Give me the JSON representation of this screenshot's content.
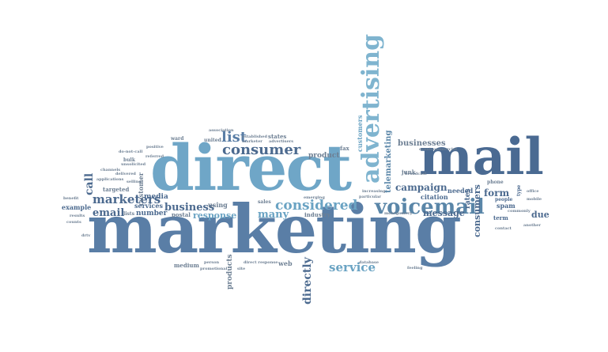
{
  "words": {
    "direct": "direct",
    "marketing": "marketing",
    "mail": "mail",
    "advertising": "advertising",
    "voicemail": "voicemail",
    "consumer": "consumer",
    "list": "list",
    "considered": "considered",
    "business": "business",
    "marketers": "marketers",
    "email": "email",
    "response": "response",
    "many": "many",
    "service": "service",
    "directly": "directly",
    "campaign": "campaign",
    "businesses": "businesses",
    "telemarketing": "telemarketing",
    "message": "message",
    "form": "form",
    "consumers": "consumers",
    "due": "due",
    "call": "call",
    "customer": "customer",
    "customers": "customers",
    "product": "product",
    "products": "products",
    "number": "number",
    "media": "media",
    "services": "services",
    "example": "example",
    "sales": "sales",
    "industry": "industry",
    "using": "using",
    "postal": "postal",
    "web": "web",
    "medium": "medium",
    "citation": "citation",
    "needed": "needed",
    "spam": "spam",
    "term": "term",
    "people": "people",
    "phone": "phone",
    "rates": "rates",
    "targeted": "targeted",
    "junk": "junk",
    "fax": "fax",
    "states": "states",
    "united": "united",
    "ward": "ward",
    "bulk": "bulk",
    "lists": "lists",
    "positive": "positive",
    "referred": "referred",
    "applications": "applications",
    "channels": "channels",
    "unsolicited": "unsolicited",
    "delivered": "delivered",
    "results": "results",
    "montgomery": "montgomery",
    "commercial": "commercial",
    "database": "database",
    "feeling": "feeling",
    "site": "site",
    "direct_response": "direct response",
    "person": "person",
    "promotional": "promotional",
    "commonly": "commonly",
    "contact": "contact",
    "broadcast": "broadcast",
    "increasing": "increasing",
    "particular": "particular",
    "established": "established",
    "marketer": "marketer",
    "advertisers": "advertisers",
    "association": "association",
    "emerging": "emerging",
    "selling": "selling",
    "do_not_call": "do-not-call",
    "event": "event",
    "another": "another",
    "type": "type",
    "office": "office",
    "mobile": "mobile",
    "drtv": "drtv",
    "benefit": "benefit",
    "counts": "counts"
  },
  "colors": {
    "dark": "#4a5f82",
    "mid": "#5f86a8",
    "light": "#7fbad3",
    "teal": "#6ab0c9",
    "gray": "#6d7f93"
  }
}
